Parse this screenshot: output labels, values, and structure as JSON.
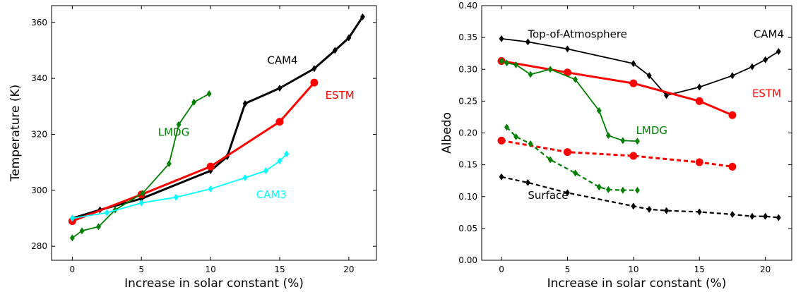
{
  "chart_data": [
    {
      "type": "line",
      "title": "",
      "xlabel": "Increase in solar constant (%)",
      "ylabel": "Temperature (K)",
      "xlim": [
        -1.5,
        22
      ],
      "ylim": [
        275,
        366
      ],
      "xticks": [
        0,
        5,
        10,
        15,
        20
      ],
      "yticks": [
        280,
        300,
        320,
        340,
        360
      ],
      "grid": false,
      "legend": "none",
      "series": [
        {
          "name": "CAM4",
          "color": "#000000",
          "linestyle": "solid",
          "marker": "diamond",
          "x": [
            0,
            2,
            5,
            10,
            11.2,
            12.5,
            15,
            17.5,
            19,
            20,
            21
          ],
          "y": [
            290,
            293,
            297,
            307,
            312,
            331,
            336.5,
            343.5,
            350,
            354.5,
            362
          ]
        },
        {
          "name": "ESTM",
          "color": "#ff0000",
          "linestyle": "solid",
          "marker": "circle",
          "x": [
            0,
            5,
            10,
            15,
            17.5
          ],
          "y": [
            289,
            298.5,
            308.5,
            324.5,
            338.5
          ]
        },
        {
          "name": "LMDG",
          "color": "#008000",
          "linestyle": "solid",
          "marker": "diamond",
          "x": [
            0,
            0.7,
            1.9,
            3.1,
            5.1,
            7,
            7.7,
            8.8,
            9.9
          ],
          "y": [
            283,
            285.5,
            287,
            293,
            299,
            309.5,
            323.5,
            331.5,
            334.5
          ]
        },
        {
          "name": "CAM3",
          "color": "#00ffff",
          "linestyle": "solid",
          "marker": "diamond",
          "x": [
            0,
            2.5,
            5,
            7.5,
            10,
            12.5,
            14,
            15,
            15.5
          ],
          "y": [
            290,
            292,
            295.5,
            297.5,
            300.5,
            304.5,
            307,
            310.5,
            313
          ]
        }
      ],
      "annotations": [
        {
          "text": "CAM4",
          "x": 14.1,
          "y": 346.5,
          "color": "#000000"
        },
        {
          "text": "ESTM",
          "x": 18.3,
          "y": 334,
          "color": "#ff0000"
        },
        {
          "text": "LMDG",
          "x": 6.2,
          "y": 320.8,
          "color": "#008000"
        },
        {
          "text": "CAM3",
          "x": 13.3,
          "y": 298.5,
          "color": "#00ffff"
        }
      ]
    },
    {
      "type": "line",
      "title": "",
      "xlabel": "Increase in solar constant (%)",
      "ylabel": "Albedo",
      "xlim": [
        -1.5,
        22
      ],
      "ylim": [
        0,
        0.4
      ],
      "xticks": [
        0,
        5,
        10,
        15,
        20
      ],
      "yticks": [
        "0.00",
        "0.05",
        "0.10",
        "0.15",
        "0.20",
        "0.25",
        "0.30",
        "0.35",
        "0.40"
      ],
      "grid": false,
      "legend": "none",
      "series": [
        {
          "name": "CAM4",
          "color": "#000000",
          "linestyle": "solid",
          "marker": "diamond",
          "x": [
            0,
            2,
            5,
            10,
            11.2,
            12.5,
            15,
            17.5,
            19,
            20,
            21
          ],
          "y": [
            0.348,
            0.343,
            0.332,
            0.309,
            0.29,
            0.259,
            0.272,
            0.29,
            0.304,
            0.315,
            0.328
          ]
        },
        {
          "name": "ESTM",
          "color": "#ff0000",
          "linestyle": "solid",
          "marker": "circle",
          "x": [
            0,
            5,
            10,
            15,
            17.5
          ],
          "y": [
            0.313,
            0.295,
            0.278,
            0.25,
            0.228
          ]
        },
        {
          "name": "LMDG",
          "color": "#008000",
          "linestyle": "solid",
          "marker": "diamond",
          "x": [
            0,
            0.4,
            1.1,
            2.2,
            3.7,
            5.6,
            7.4,
            8.1,
            9.2,
            10.3
          ],
          "y": [
            0.313,
            0.31,
            0.307,
            0.292,
            0.3,
            0.284,
            0.235,
            0.196,
            0.188,
            0.187
          ]
        },
        {
          "name": "ESTM",
          "color": "#ff0000",
          "linestyle": "dashed",
          "marker": "circle",
          "x": [
            0,
            5,
            10,
            15,
            17.5
          ],
          "y": [
            0.188,
            0.17,
            0.164,
            0.154,
            0.147
          ]
        },
        {
          "name": "LMDG",
          "color": "#008000",
          "linestyle": "dashed",
          "marker": "diamond",
          "x": [
            0.4,
            1.1,
            2.2,
            3.7,
            5.6,
            7.4,
            8.1,
            9.2,
            10.3
          ],
          "y": [
            0.209,
            0.194,
            0.183,
            0.158,
            0.137,
            0.115,
            0.111,
            0.11,
            0.11
          ]
        },
        {
          "name": "CAM4",
          "color": "#000000",
          "linestyle": "dashed",
          "marker": "diamond",
          "x": [
            0,
            2,
            5,
            10,
            11.2,
            12.5,
            15,
            17.5,
            19,
            20,
            21
          ],
          "y": [
            0.131,
            0.122,
            0.106,
            0.085,
            0.08,
            0.078,
            0.076,
            0.072,
            0.069,
            0.069,
            0.067
          ]
        }
      ],
      "annotations": [
        {
          "text": "Top-of-Atmosphere",
          "x": 2.0,
          "y": 0.355,
          "color": "#000000"
        },
        {
          "text": "CAM4",
          "x": 19.1,
          "y": 0.355,
          "color": "#000000"
        },
        {
          "text": "ESTM",
          "x": 19.0,
          "y": 0.262,
          "color": "#ff0000"
        },
        {
          "text": "LMDG",
          "x": 10.2,
          "y": 0.204,
          "color": "#008000"
        },
        {
          "text": "Surface",
          "x": 2.0,
          "y": 0.102,
          "color": "#000000"
        }
      ]
    }
  ]
}
